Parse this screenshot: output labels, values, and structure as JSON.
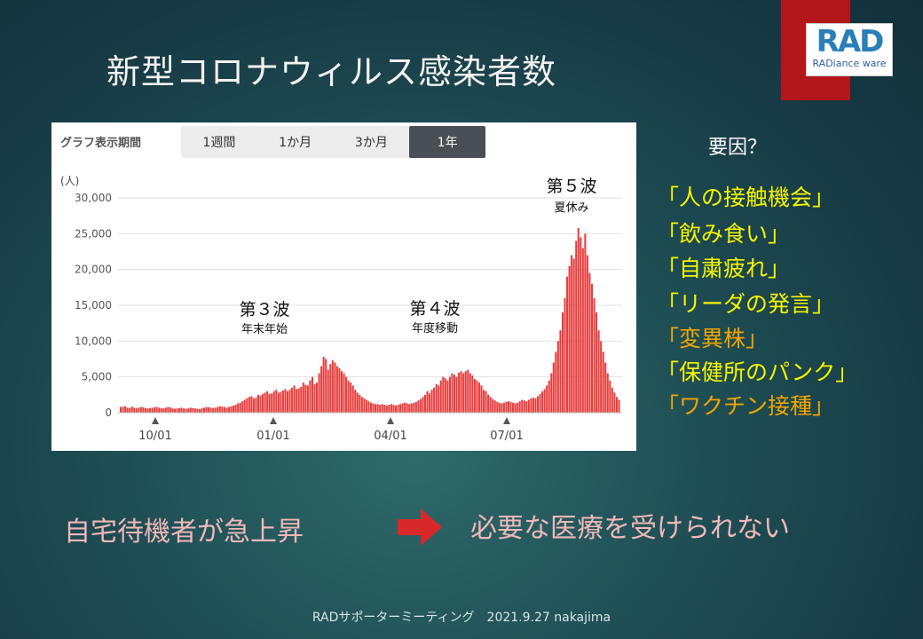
{
  "slide_title": "新型コロナウィルス感染者数",
  "logo": {
    "main": "RAD",
    "sub": "RADiance ware"
  },
  "chart_panel": {
    "tabs_label": "グラフ表示期間",
    "tabs": [
      {
        "label": "1週間",
        "active": false
      },
      {
        "label": "1か月",
        "active": false
      },
      {
        "label": "3か月",
        "active": false
      },
      {
        "label": "1年",
        "active": true
      }
    ],
    "unit": "(人)"
  },
  "chart_data": {
    "type": "bar",
    "ylabel": "(人)",
    "ylim": [
      0,
      30000
    ],
    "y_ticks": [
      "30,000",
      "25,000",
      "20,000",
      "15,000",
      "10,000",
      "5,000",
      "0"
    ],
    "x_ticks": [
      "10/01",
      "01/01",
      "04/01",
      "07/01"
    ],
    "bar_color": "#e83b3b",
    "grid": true,
    "series": [
      {
        "values": [
          800,
          850,
          900,
          700,
          650,
          850,
          700,
          600,
          700,
          800,
          750,
          650,
          600,
          650,
          700,
          750,
          800,
          700,
          650,
          600,
          700,
          800,
          750,
          600,
          550,
          600,
          650,
          700,
          600,
          550,
          600,
          700,
          650,
          600,
          550,
          500,
          600,
          700,
          800,
          750,
          700,
          650,
          700,
          800,
          900,
          850,
          800,
          700,
          800,
          900,
          1000,
          1100,
          1300,
          1400,
          1600,
          1800,
          2000,
          2200,
          2300,
          2000,
          2100,
          2500,
          2400,
          2600,
          2800,
          3000,
          2600,
          2700,
          3000,
          3200,
          2800,
          2900,
          3100,
          3300,
          3000,
          3200,
          3500,
          3800,
          3300,
          3400,
          3600,
          4200,
          3900,
          3800,
          4500,
          5000,
          4000,
          4200,
          5500,
          6500,
          7800,
          7500,
          6000,
          6800,
          7300,
          7000,
          6500,
          6200,
          5800,
          5500,
          5000,
          4500,
          4200,
          3800,
          3200,
          2800,
          2500,
          2200,
          2000,
          1800,
          1600,
          1400,
          1300,
          1200,
          1200,
          1100,
          1200,
          1100,
          1000,
          1100,
          1200,
          1100,
          1000,
          1100,
          1200,
          1300,
          1400,
          1300,
          1200,
          1300,
          1400,
          1500,
          1700,
          1900,
          2200,
          2500,
          3000,
          2700,
          3200,
          3500,
          4000,
          3800,
          4500,
          5000,
          4800,
          4500,
          5000,
          5500,
          5300,
          5000,
          5600,
          5800,
          5500,
          5800,
          6000,
          5500,
          5200,
          4700,
          4500,
          4200,
          3800,
          3200,
          3000,
          2500,
          2200,
          1900,
          1700,
          1500,
          1400,
          1300,
          1400,
          1500,
          1600,
          1500,
          1400,
          1300,
          1400,
          1600,
          1800,
          1700,
          1600,
          1800,
          2000,
          2100,
          2000,
          2300,
          2600,
          3000,
          3300,
          3800,
          4500,
          5500,
          7000,
          8500,
          10000,
          11500,
          14000,
          16000,
          19000,
          20500,
          22000,
          21500,
          24000,
          25800,
          24500,
          23000,
          25000,
          22000,
          19500,
          18000,
          16000,
          14000,
          11500,
          10000,
          8500,
          7000,
          5500,
          4500,
          3500,
          2800,
          2200,
          1800
        ]
      }
    ],
    "annotations": [
      {
        "title": "第３波",
        "sub": "年末年始"
      },
      {
        "title": "第４波",
        "sub": "年度移動"
      },
      {
        "title": "第５波",
        "sub": "夏休み"
      }
    ]
  },
  "factors": {
    "title": "要因？",
    "items": [
      {
        "text": "「人の接触機会」",
        "color": "#f5f500"
      },
      {
        "text": "「飲み食い」",
        "color": "#f5f500"
      },
      {
        "text": "「自粛疲れ」",
        "color": "#f5f500"
      },
      {
        "text": "「リーダの発言」",
        "color": "#f5f500"
      },
      {
        "text": "「変異株」",
        "color": "#f0a500"
      },
      {
        "text": "「保健所のパンク」",
        "color": "#f5f500"
      },
      {
        "text": "「ワクチン接種」",
        "color": "#f0a500"
      }
    ]
  },
  "bottom": {
    "left_text": "自宅待機者が急上昇",
    "right_text": "必要な医療を受けられない",
    "arrow_icon": "right-arrow-icon",
    "arrow_color": "#d8282a"
  },
  "footer": "RADサポーターミーティング　2021.9.27  nakajima"
}
